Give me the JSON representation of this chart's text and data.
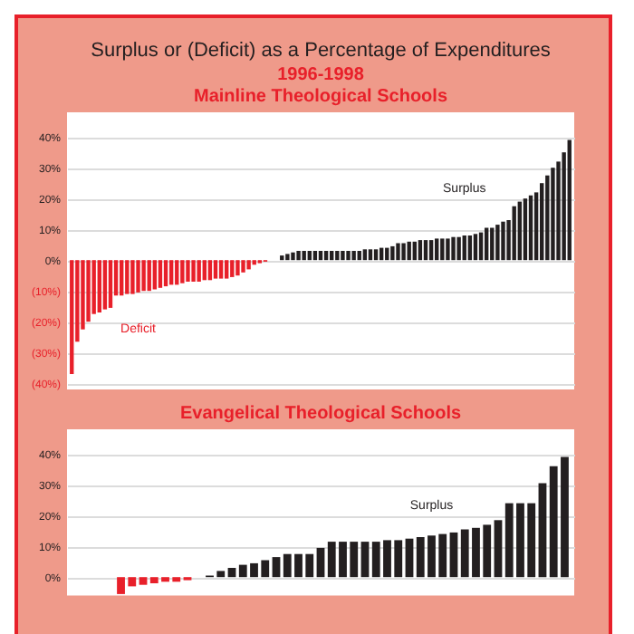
{
  "chart_data": [
    {
      "type": "bar",
      "title": "Surplus or (Deficit) as a Percentage of Expenditures",
      "subtitle": [
        "1996-1998",
        "Mainline Theological Schools"
      ],
      "categories": [
        null,
        null,
        null,
        null,
        null,
        null,
        null,
        null,
        null,
        null,
        null,
        null,
        null,
        null,
        null,
        null,
        null,
        null,
        null,
        null,
        null,
        null,
        null,
        null,
        null,
        null,
        null,
        null,
        null,
        null,
        null,
        null,
        null,
        null,
        null,
        null,
        null,
        null,
        null,
        null,
        null,
        null,
        null,
        null,
        null,
        null,
        null,
        null,
        null,
        null,
        null,
        null,
        null,
        null,
        null,
        null,
        null,
        null,
        null,
        null,
        null,
        null,
        null,
        null,
        null,
        null,
        null,
        null,
        null,
        null,
        null,
        null,
        null,
        null,
        null,
        null,
        null,
        null,
        null,
        null,
        null,
        null,
        null,
        null,
        null,
        null,
        null,
        null,
        null,
        null,
        null
      ],
      "series": [
        {
          "name": "Deficit",
          "color": "#e8202a",
          "values": [
            -37,
            -26.5,
            -22.5,
            -20,
            -17.5,
            -17,
            -16,
            -15.5,
            -11.5,
            -11.5,
            -11,
            -11,
            -10.5,
            -10,
            -10,
            -9.5,
            -9,
            -8.5,
            -8,
            -8,
            -7.5,
            -7,
            -7,
            -7,
            -6.5,
            -6.5,
            -6,
            -6,
            -6,
            -5.5,
            -5,
            -4,
            -3,
            -1.5,
            -1,
            -0.5,
            null,
            null,
            null,
            null,
            null,
            null,
            null,
            null,
            null,
            null,
            null,
            null,
            null,
            null,
            null,
            null,
            null,
            null,
            null,
            null,
            null,
            null,
            null,
            null,
            null,
            null,
            null,
            null,
            null,
            null,
            null,
            null,
            null,
            null,
            null,
            null,
            null,
            null,
            null,
            null,
            null,
            null,
            null,
            null,
            null,
            null,
            null,
            null,
            null,
            null,
            null,
            null,
            null,
            null,
            null
          ]
        },
        {
          "name": "Surplus",
          "color": "#231f20",
          "values": [
            null,
            null,
            null,
            null,
            null,
            null,
            null,
            null,
            null,
            null,
            null,
            null,
            null,
            null,
            null,
            null,
            null,
            null,
            null,
            null,
            null,
            null,
            null,
            null,
            null,
            null,
            null,
            null,
            null,
            null,
            null,
            null,
            null,
            null,
            null,
            null,
            0,
            0,
            1.5,
            2,
            2.5,
            3,
            3,
            3,
            3,
            3,
            3,
            3,
            3,
            3,
            3,
            3,
            3,
            3.5,
            3.5,
            3.5,
            4,
            4,
            4.5,
            5.5,
            5.5,
            6,
            6,
            6.5,
            6.5,
            6.5,
            7,
            7,
            7,
            7.5,
            7.5,
            8,
            8,
            8.5,
            9,
            10.5,
            10.5,
            11.5,
            12.5,
            13,
            17.5,
            19,
            20,
            21,
            22,
            25,
            27.5,
            30,
            32,
            35,
            39
          ]
        }
      ],
      "ylim": [
        -42,
        48
      ],
      "yticks": [
        {
          "value": -40,
          "label": "(40%)"
        },
        {
          "value": -30,
          "label": "(30%)"
        },
        {
          "value": -20,
          "label": "(20%)"
        },
        {
          "value": -10,
          "label": "(10%)"
        },
        {
          "value": 0,
          "label": "0%"
        },
        {
          "value": 10,
          "label": "10%"
        },
        {
          "value": 20,
          "label": "20%"
        },
        {
          "value": 30,
          "label": "30%"
        },
        {
          "value": 40,
          "label": "40%"
        }
      ],
      "grid": "y",
      "tick_labels": "y",
      "legend": false
    },
    {
      "type": "bar",
      "title": "Evangelical Theological Schools",
      "categories": [
        null,
        null,
        null,
        null,
        null,
        null,
        null,
        null,
        null,
        null,
        null,
        null,
        null,
        null,
        null,
        null,
        null,
        null,
        null,
        null,
        null,
        null,
        null,
        null,
        null,
        null,
        null,
        null,
        null,
        null,
        null,
        null,
        null,
        null,
        null,
        null,
        null,
        null,
        null,
        null,
        null,
        null,
        null,
        null,
        null
      ],
      "series": [
        {
          "color": "#e8202a",
          "values": [
            null,
            null,
            null,
            null,
            -5.5,
            -3,
            -2.5,
            -2,
            -1.5,
            -1.5,
            -1,
            null,
            null,
            null,
            null,
            null,
            null,
            null,
            null,
            null,
            null,
            null,
            null,
            null,
            null,
            null,
            null,
            null,
            null,
            null,
            null,
            null,
            null,
            null,
            null,
            null,
            null,
            null,
            null,
            null,
            null,
            null,
            null,
            null,
            null
          ]
        },
        {
          "name": "Surplus",
          "color": "#231f20",
          "values": [
            null,
            null,
            null,
            null,
            null,
            null,
            null,
            null,
            null,
            null,
            null,
            0,
            0.5,
            2,
            3,
            4,
            4.5,
            5.5,
            6.5,
            7.5,
            7.5,
            7.5,
            9.5,
            11.5,
            11.5,
            11.5,
            11.5,
            11.5,
            12,
            12,
            12.5,
            13,
            13.5,
            14,
            14.5,
            15.5,
            16,
            17,
            18.5,
            24,
            24,
            24,
            30.5,
            36,
            39
          ]
        }
      ],
      "ylim": [
        -6,
        48
      ],
      "yticks": [
        {
          "value": 0,
          "label": "0%"
        },
        {
          "value": 10,
          "label": "10%"
        },
        {
          "value": 20,
          "label": "20%"
        },
        {
          "value": 30,
          "label": "30%"
        },
        {
          "value": 40,
          "label": "40%"
        }
      ],
      "grid": "y",
      "tick_labels": "y",
      "legend": false
    }
  ]
}
